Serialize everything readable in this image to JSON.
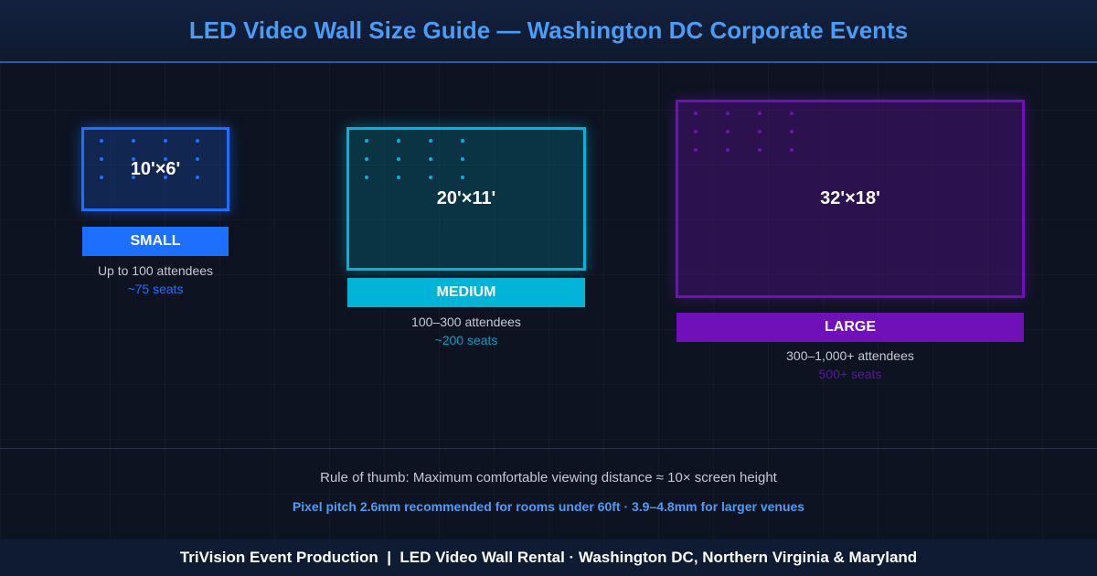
{
  "title": "LED Video Wall Size Guide — Washington DC Corporate Events",
  "walls": [
    {
      "dimensions": "10'×6'",
      "size": "SMALL",
      "attendees": "Up to 100 attendees",
      "seats": "~75 seats",
      "color": "#1f6fff"
    },
    {
      "dimensions": "20'×11'",
      "size": "MEDIUM",
      "attendees": "100–300 attendees",
      "seats": "~200 seats",
      "color": "#00b4d8"
    },
    {
      "dimensions": "32'×18'",
      "size": "LARGE",
      "attendees": "300–1,000+ attendees",
      "seats": "500+ seats",
      "color": "#7010b8"
    }
  ],
  "rule_of_thumb": "Rule of thumb: Maximum comfortable viewing distance ≈ 10× screen height",
  "pixel_pitch": "Pixel pitch 2.6mm recommended for rooms under 60ft · 3.9–4.8mm for larger venues",
  "footer": "TriVision Event Production  |  LED Video Wall Rental · Washington DC, Northern Virginia & Maryland"
}
